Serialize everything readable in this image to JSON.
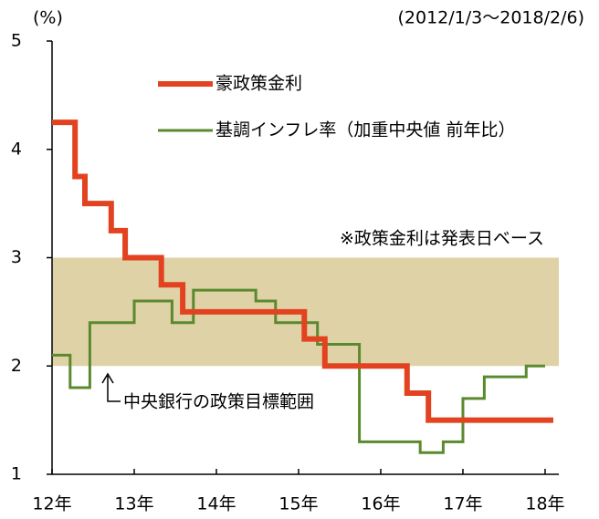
{
  "chart_data": {
    "type": "step_line",
    "unit_label": "(%)",
    "period": "(2012/1/3～2018/2/6)",
    "note": "※政策金利は発表日ベース",
    "xlim": [
      2012,
      2018.167
    ],
    "xticks": [
      {
        "value": 2012,
        "label": "12年"
      },
      {
        "value": 2013,
        "label": "13年"
      },
      {
        "value": 2014,
        "label": "14年"
      },
      {
        "value": 2015,
        "label": "15年"
      },
      {
        "value": 2016,
        "label": "16年"
      },
      {
        "value": 2017,
        "label": "17年"
      },
      {
        "value": 2018,
        "label": "18年"
      }
    ],
    "ylim": [
      1,
      5
    ],
    "yticks": [
      1,
      2,
      3,
      4,
      5
    ],
    "band": {
      "range": [
        2,
        3
      ],
      "label": "中央銀行の政策目標範囲",
      "color": "#dfd2a6"
    },
    "series": [
      {
        "name": "豪政策金利",
        "color": "#e2421f",
        "width": 6,
        "x": [
          2012.0,
          2012.28,
          2012.4,
          2012.72,
          2012.89,
          2013.33,
          2013.59,
          2015.07,
          2015.32,
          2016.32,
          2016.58,
          2018.1
        ],
        "values": [
          4.25,
          3.75,
          3.5,
          3.25,
          3.0,
          2.75,
          2.5,
          2.25,
          2.0,
          1.75,
          1.5,
          1.5
        ]
      },
      {
        "name": "基調インフレ率（加重中央値 前年比）",
        "color": "#5b8a2e",
        "width": 3,
        "x": [
          2012.0,
          2012.22,
          2012.46,
          2013.0,
          2013.46,
          2013.72,
          2014.48,
          2014.72,
          2015.23,
          2015.74,
          2016.48,
          2016.76,
          2017.0,
          2017.26,
          2017.77,
          2018.0
        ],
        "values": [
          2.1,
          1.8,
          2.4,
          2.6,
          2.4,
          2.7,
          2.6,
          2.4,
          2.2,
          1.3,
          1.2,
          1.3,
          1.7,
          1.9,
          2.0,
          2.0
        ]
      }
    ]
  }
}
